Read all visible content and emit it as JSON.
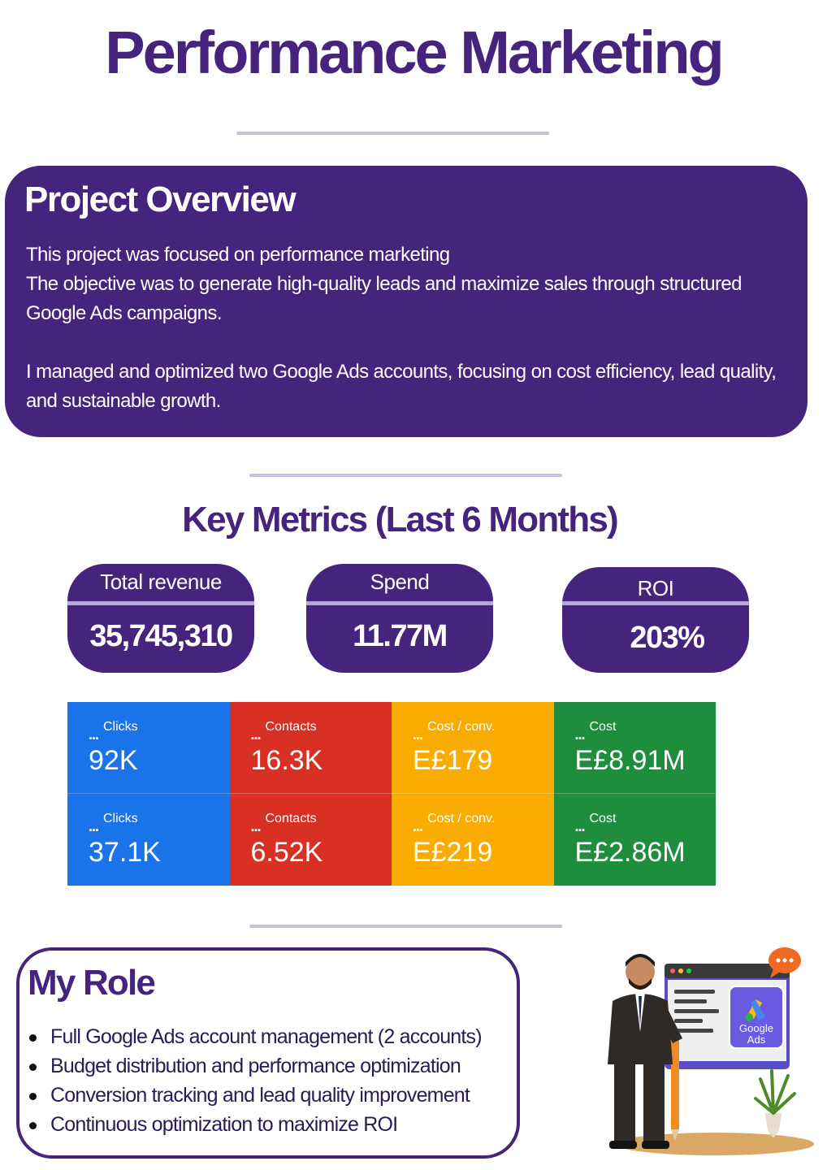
{
  "title": "Performance Marketing",
  "overview": {
    "heading": "Project Overview",
    "line1": "This project was focused on performance marketing",
    "line2": " The objective was to generate high-quality leads and maximize sales through structured",
    "line3": "Google Ads campaigns.",
    "line4": "I managed and optimized two Google Ads accounts, focusing on cost efficiency, lead quality,",
    "line5": "and sustainable growth."
  },
  "metrics": {
    "heading": "Key Metrics (Last 6 Months)",
    "kpis": [
      {
        "label": "Total revenue",
        "value": "35,745,310"
      },
      {
        "label": "Spend",
        "value": "11.77M"
      },
      {
        "label": "ROI",
        "value": "203%"
      }
    ]
  },
  "ads": {
    "dots": "...",
    "rows": [
      [
        {
          "label": "Clicks",
          "value": "92K"
        },
        {
          "label": "Contacts",
          "value": "16.3K"
        },
        {
          "label": "Cost / conv.",
          "value": "E£179"
        },
        {
          "label": "Cost",
          "value": "E£8.91M"
        }
      ],
      [
        {
          "label": "Clicks",
          "value": "37.1K"
        },
        {
          "label": "Contacts",
          "value": "6.52K"
        },
        {
          "label": "Cost / conv.",
          "value": "E£219"
        },
        {
          "label": "Cost",
          "value": "E£2.86M"
        }
      ]
    ],
    "colors": {
      "blue": "#1a73e8",
      "red": "#d93025",
      "yellow": "#f9ab00",
      "green": "#1e8e3e"
    }
  },
  "role": {
    "heading": "My Role",
    "items": [
      "Full Google Ads account management (2 accounts)",
      "Budget distribution and performance optimization",
      "Conversion tracking and lead quality improvement",
      "Continuous optimization to maximize ROI"
    ]
  },
  "illustration": {
    "logo_line1": "Google",
    "logo_line2": "Ads",
    "icons": [
      "businessman-illustration",
      "google-ads-logo-icon",
      "chat-bubble-icon",
      "plant-icon",
      "pencil-icon"
    ]
  },
  "colors": {
    "brand_purple": "#45247e",
    "divider": "#c8c0dd"
  }
}
